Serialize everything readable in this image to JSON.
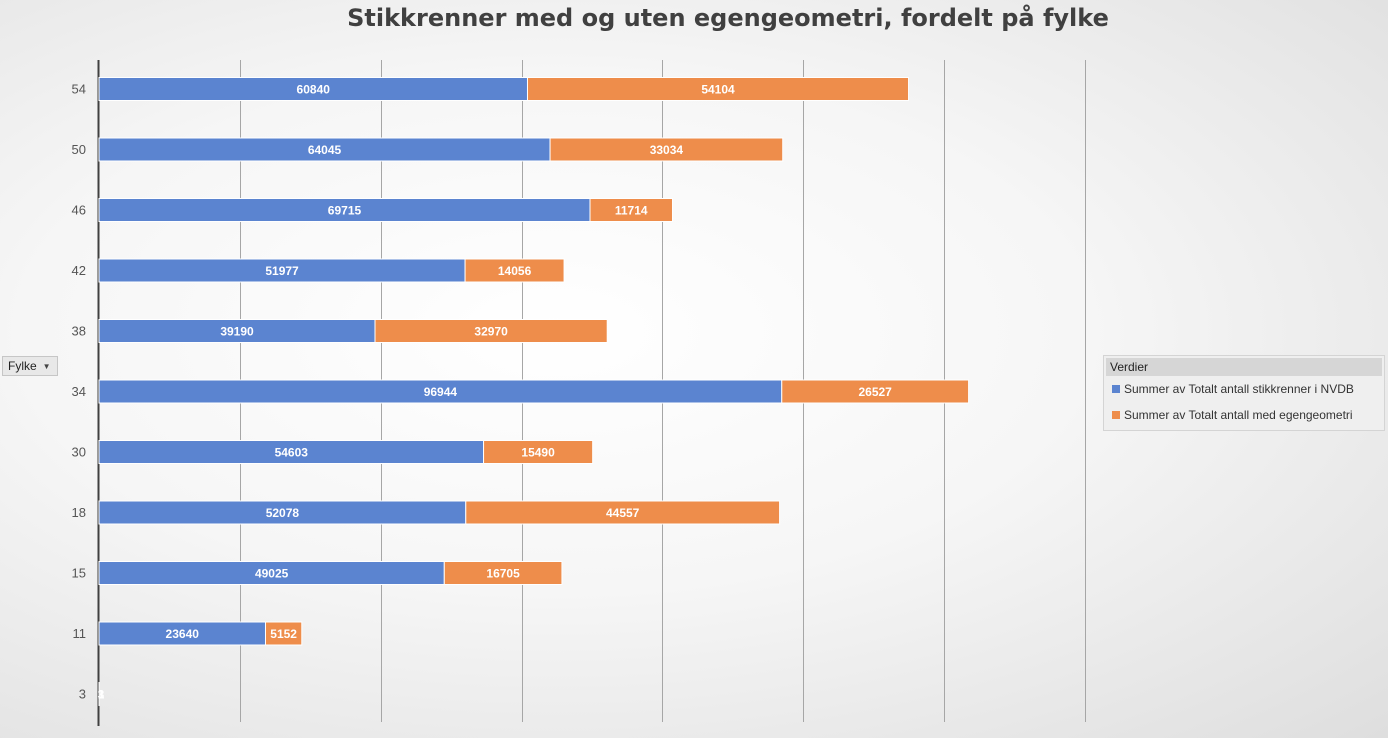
{
  "chart_data": {
    "type": "bar",
    "orientation": "horizontal",
    "stacked": true,
    "title": "Stikkrenner med og uten egengeometri, fordelt på fylke",
    "axis_field_label": "Fylke",
    "categories": [
      "54",
      "50",
      "46",
      "42",
      "38",
      "34",
      "30",
      "18",
      "15",
      "11",
      "3"
    ],
    "series": [
      {
        "name": "Summer av Totalt antall stikkrenner i NVDB",
        "color": "#5b84d0",
        "values": [
          60840,
          64045,
          69715,
          51977,
          39190,
          96944,
          54603,
          52078,
          49025,
          23640,
          3
        ],
        "labels": [
          "60840",
          "64045",
          "69715",
          "51977",
          "39190",
          "96944",
          "54603",
          "52078",
          "49025",
          "23640",
          "3"
        ]
      },
      {
        "name": "Summer av Totalt antall med egengeometri",
        "color": "#ee8d4b",
        "values": [
          54104,
          33034,
          11714,
          14056,
          32970,
          26527,
          15490,
          44557,
          16705,
          5152,
          1
        ],
        "labels": [
          "54104",
          "33034",
          "11714",
          "14056",
          "32970",
          "26527",
          "15490",
          "44557",
          "16705",
          "5152",
          "1"
        ]
      }
    ],
    "xlim": [
      0,
      140000
    ],
    "grid": true,
    "legend_title": "Verdier",
    "legend_position": "right"
  }
}
